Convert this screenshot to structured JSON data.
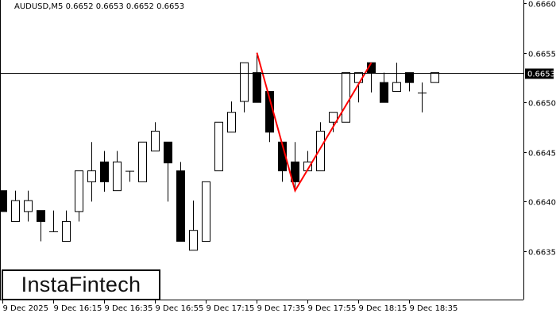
{
  "header": {
    "title": "AUDUSD,M5  0.6652 0.6653 0.6652 0.6653"
  },
  "logo": {
    "text": "InstaFintech"
  },
  "chart_data": {
    "type": "candlestick",
    "symbol": "AUDUSD",
    "timeframe": "M5",
    "ylim": [
      0.66305,
      0.66602
    ],
    "yticks": [
      "0.6660",
      "0.6655",
      "0.6650",
      "0.6645",
      "0.6640",
      "0.6635"
    ],
    "ytick_values": [
      0.666,
      0.6655,
      0.665,
      0.6645,
      0.664,
      0.6635
    ],
    "xticks": [
      "9 Dec 2025",
      "9 Dec 16:15",
      "9 Dec 16:35",
      "9 Dec 16:55",
      "9 Dec 17:15",
      "9 Dec 17:35",
      "9 Dec 17:55",
      "9 Dec 18:15",
      "9 Dec 18:35"
    ],
    "xtick_candle_index": [
      0,
      4,
      8,
      12,
      16,
      20,
      24,
      28,
      32
    ],
    "current_price": {
      "label": "0.6653",
      "value": 0.6653
    },
    "candles": [
      {
        "o": 0.66411,
        "h": 0.66411,
        "l": 0.6639,
        "c": 0.6639
      },
      {
        "o": 0.6638,
        "h": 0.66411,
        "l": 0.6638,
        "c": 0.66401
      },
      {
        "o": 0.6639,
        "h": 0.66411,
        "l": 0.6638,
        "c": 0.66401
      },
      {
        "o": 0.66391,
        "h": 0.66391,
        "l": 0.6636,
        "c": 0.6638
      },
      {
        "o": 0.6637,
        "h": 0.66391,
        "l": 0.6637,
        "c": 0.6637
      },
      {
        "o": 0.6636,
        "h": 0.66391,
        "l": 0.6636,
        "c": 0.6638
      },
      {
        "o": 0.6639,
        "h": 0.66431,
        "l": 0.6638,
        "c": 0.66431
      },
      {
        "o": 0.6642,
        "h": 0.6646,
        "l": 0.664,
        "c": 0.66431
      },
      {
        "o": 0.6644,
        "h": 0.66451,
        "l": 0.6641,
        "c": 0.6642
      },
      {
        "o": 0.66411,
        "h": 0.66451,
        "l": 0.66411,
        "c": 0.6644
      },
      {
        "o": 0.66431,
        "h": 0.66431,
        "l": 0.6642,
        "c": 0.66431
      },
      {
        "o": 0.6642,
        "h": 0.6646,
        "l": 0.6642,
        "c": 0.6646
      },
      {
        "o": 0.66451,
        "h": 0.6648,
        "l": 0.66451,
        "c": 0.66471
      },
      {
        "o": 0.6646,
        "h": 0.6646,
        "l": 0.664,
        "c": 0.66439
      },
      {
        "o": 0.66431,
        "h": 0.6644,
        "l": 0.6636,
        "c": 0.6636
      },
      {
        "o": 0.66351,
        "h": 0.66401,
        "l": 0.66351,
        "c": 0.66371
      },
      {
        "o": 0.6636,
        "h": 0.6642,
        "l": 0.6636,
        "c": 0.6642
      },
      {
        "o": 0.66431,
        "h": 0.6648,
        "l": 0.66431,
        "c": 0.6648
      },
      {
        "o": 0.6647,
        "h": 0.66501,
        "l": 0.6647,
        "c": 0.6649
      },
      {
        "o": 0.66501,
        "h": 0.6654,
        "l": 0.6649,
        "c": 0.6654
      },
      {
        "o": 0.6653,
        "h": 0.6655,
        "l": 0.665,
        "c": 0.665
      },
      {
        "o": 0.66511,
        "h": 0.66511,
        "l": 0.6646,
        "c": 0.6647
      },
      {
        "o": 0.6646,
        "h": 0.6646,
        "l": 0.6642,
        "c": 0.66431
      },
      {
        "o": 0.6644,
        "h": 0.6646,
        "l": 0.66411,
        "c": 0.6642
      },
      {
        "o": 0.66431,
        "h": 0.66451,
        "l": 0.66431,
        "c": 0.6644
      },
      {
        "o": 0.66431,
        "h": 0.6648,
        "l": 0.66431,
        "c": 0.66471
      },
      {
        "o": 0.6648,
        "h": 0.6649,
        "l": 0.6647,
        "c": 0.6649
      },
      {
        "o": 0.6648,
        "h": 0.6653,
        "l": 0.6648,
        "c": 0.6653
      },
      {
        "o": 0.6652,
        "h": 0.6653,
        "l": 0.665,
        "c": 0.6653
      },
      {
        "o": 0.6654,
        "h": 0.6654,
        "l": 0.6651,
        "c": 0.6653
      },
      {
        "o": 0.6652,
        "h": 0.6653,
        "l": 0.665,
        "c": 0.665
      },
      {
        "o": 0.66511,
        "h": 0.6654,
        "l": 0.66511,
        "c": 0.6652
      },
      {
        "o": 0.6653,
        "h": 0.6653,
        "l": 0.66511,
        "c": 0.6652
      },
      {
        "o": 0.6651,
        "h": 0.6652,
        "l": 0.6649,
        "c": 0.6651
      },
      {
        "o": 0.6652,
        "h": 0.6653,
        "l": 0.6652,
        "c": 0.6653
      }
    ],
    "pattern_line": {
      "color": "#ff0000",
      "points": [
        {
          "candle": 20,
          "price": 0.6655
        },
        {
          "candle": 23,
          "price": 0.66411
        },
        {
          "candle": 29,
          "price": 0.6654
        }
      ]
    },
    "colors": {
      "bull_body": "#ffffff",
      "bear_body": "#000000",
      "outline": "#000000",
      "background": "#ffffff"
    }
  }
}
